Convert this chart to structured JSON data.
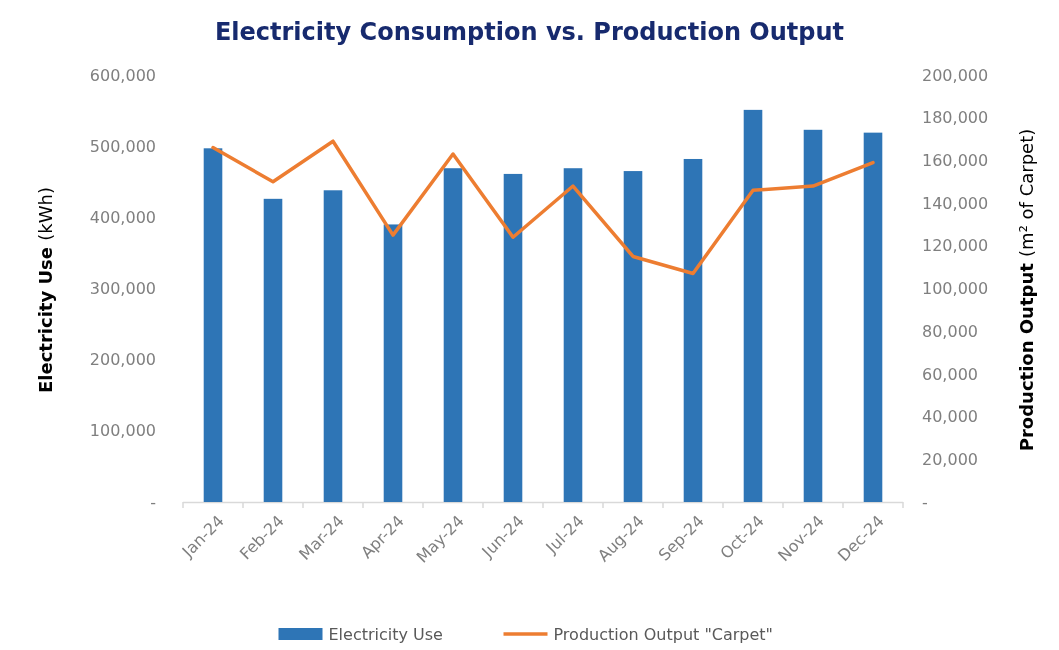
{
  "chart_data": {
    "type": "bar",
    "title": "Electricity Consumption vs. Production Output",
    "ylabel": "Electricity Use (kWh)",
    "y2label": "Production Output (m² of Carpet)",
    "categories": [
      "Jan-24",
      "Feb-24",
      "Mar-24",
      "Apr-24",
      "May-24",
      "Jun-24",
      "Jul-24",
      "Aug-24",
      "Sep-24",
      "Oct-24",
      "Nov-24",
      "Dec-24"
    ],
    "series": [
      {
        "name": "Electricity Use",
        "color": "#2e75b6",
        "values": [
          497000,
          426000,
          438000,
          390000,
          469000,
          461000,
          469000,
          465000,
          482000,
          551000,
          523000,
          519000
        ]
      },
      {
        "name": "Production Output \"Carpet\"",
        "type": "line",
        "axis": "y2",
        "color": "#ed7d31",
        "values": [
          166000,
          150000,
          169000,
          125000,
          163000,
          124000,
          148000,
          115000,
          107000,
          146000,
          148000,
          159000
        ]
      }
    ],
    "ylim": [
      0,
      600000
    ],
    "yticks": [
      {
        "value": 0,
        "label": "-"
      },
      {
        "value": 100000,
        "label": "100,000"
      },
      {
        "value": 200000,
        "label": "200,000"
      },
      {
        "value": 300000,
        "label": "300,000"
      },
      {
        "value": 400000,
        "label": "400,000"
      },
      {
        "value": 500000,
        "label": "500,000"
      },
      {
        "value": 600000,
        "label": "600,000"
      }
    ],
    "y2lim": [
      0,
      200000
    ],
    "y2ticks": [
      {
        "value": 0,
        "label": "-"
      },
      {
        "value": 20000,
        "label": "20,000"
      },
      {
        "value": 40000,
        "label": "40,000"
      },
      {
        "value": 60000,
        "label": "60,000"
      },
      {
        "value": 80000,
        "label": "80,000"
      },
      {
        "value": 100000,
        "label": "100,000"
      },
      {
        "value": 120000,
        "label": "120,000"
      },
      {
        "value": 140000,
        "label": "140,000"
      },
      {
        "value": 160000,
        "label": "160,000"
      },
      {
        "value": 180000,
        "label": "180,000"
      },
      {
        "value": 200000,
        "label": "200,000"
      }
    ],
    "legend": "bottom"
  }
}
